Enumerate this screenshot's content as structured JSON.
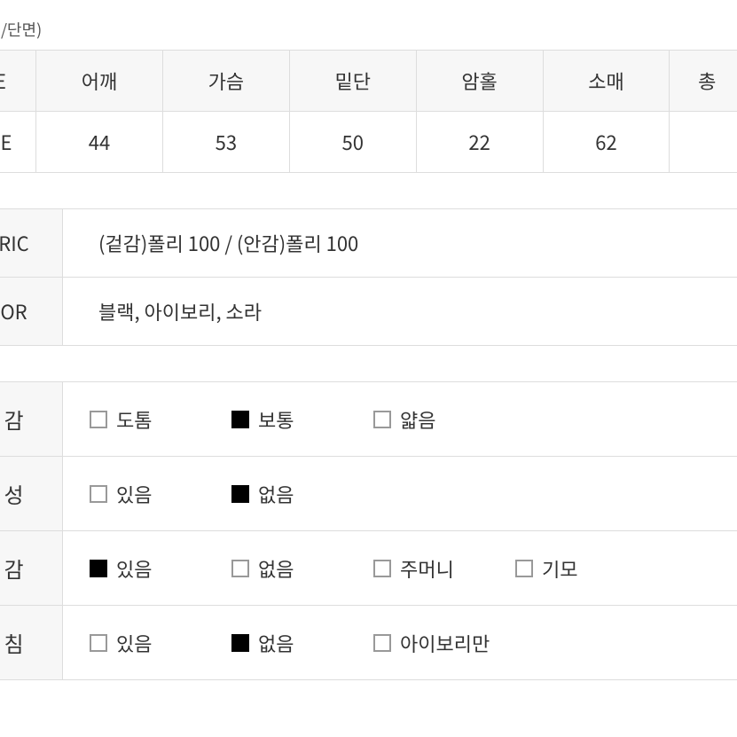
{
  "unit_label": "n/단면)",
  "size_table": {
    "headers": [
      "E",
      "어깨",
      "가슴",
      "밑단",
      "암홀",
      "소매",
      "총"
    ],
    "row_label": "EE",
    "values": [
      "44",
      "53",
      "50",
      "22",
      "62",
      ""
    ]
  },
  "info_table": {
    "fabric_label": "RIC",
    "fabric_value": "(겉감)폴리 100 / (안감)폴리 100",
    "color_label": "OR",
    "color_value": "블랙, 아이보리, 소라"
  },
  "props_table": {
    "rows": [
      {
        "label": "감",
        "options": [
          {
            "text": "도톰",
            "checked": false
          },
          {
            "text": "보통",
            "checked": true
          },
          {
            "text": "얇음",
            "checked": false
          }
        ]
      },
      {
        "label": "성",
        "options": [
          {
            "text": "있음",
            "checked": false
          },
          {
            "text": "없음",
            "checked": true
          }
        ]
      },
      {
        "label": "감",
        "options": [
          {
            "text": "있음",
            "checked": true
          },
          {
            "text": "없음",
            "checked": false
          },
          {
            "text": "주머니",
            "checked": false
          },
          {
            "text": "기모",
            "checked": false
          }
        ]
      },
      {
        "label": "침",
        "options": [
          {
            "text": "있음",
            "checked": false
          },
          {
            "text": "없음",
            "checked": true
          },
          {
            "text": "아이보리만",
            "checked": false
          }
        ]
      }
    ]
  },
  "colors": {
    "border": "#dddddd",
    "header_bg": "#f7f7f7",
    "text": "#333333",
    "unit_text": "#555555",
    "box_border": "#999999",
    "box_checked": "#000000",
    "background": "#ffffff"
  }
}
